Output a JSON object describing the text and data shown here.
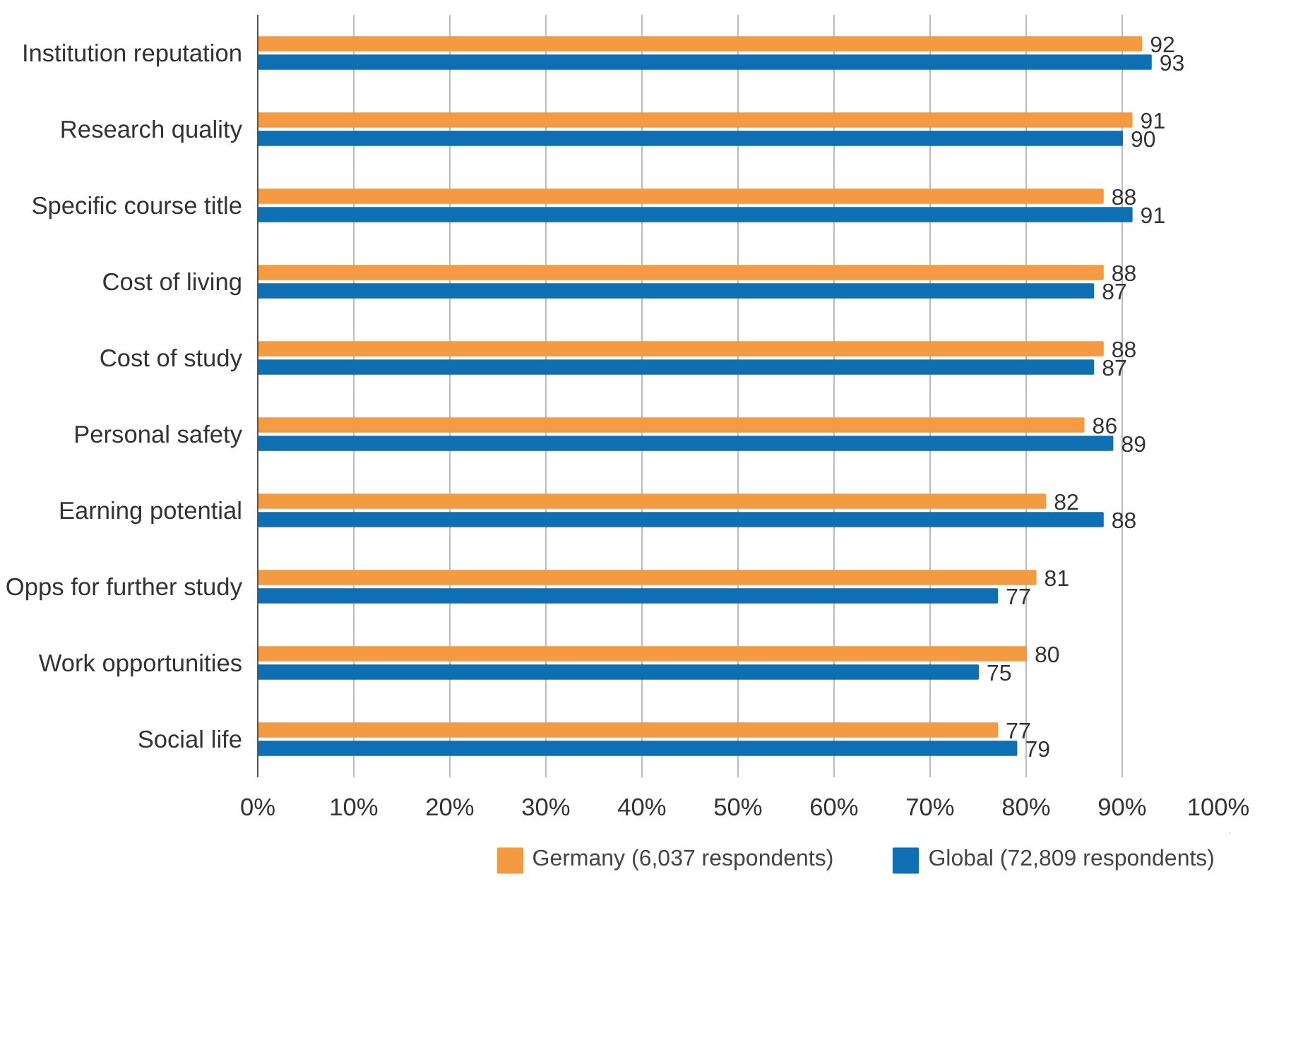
{
  "chart_data": {
    "type": "bar",
    "orientation": "horizontal",
    "categories": [
      "Institution reputation",
      "Research quality",
      "Specific course title",
      "Cost of living",
      "Cost of study",
      "Personal safety",
      "Earning potential",
      "Opps for further study",
      "Work opportunities",
      "Social life"
    ],
    "series": [
      {
        "name": "Germany (6,037 respondents)",
        "color": "#f39a43",
        "values": [
          92,
          91,
          88,
          88,
          88,
          86,
          82,
          81,
          80,
          77
        ]
      },
      {
        "name": "Global (72,809 respondents)",
        "color": "#0f6fb3",
        "values": [
          93,
          90,
          91,
          87,
          87,
          89,
          88,
          77,
          75,
          79
        ]
      }
    ],
    "xlim": [
      0,
      100
    ],
    "xticks": [
      {
        "value": 0,
        "label": "0%"
      },
      {
        "value": 10,
        "label": "10%"
      },
      {
        "value": 20,
        "label": "20%"
      },
      {
        "value": 30,
        "label": "30%"
      },
      {
        "value": 40,
        "label": "40%"
      },
      {
        "value": 50,
        "label": "50%"
      },
      {
        "value": 60,
        "label": "60%"
      },
      {
        "value": 70,
        "label": "70%"
      },
      {
        "value": 80,
        "label": "80%"
      },
      {
        "value": 90,
        "label": "90%"
      },
      {
        "value": 100,
        "label": "100%"
      }
    ],
    "grid": "x",
    "legend": "bottom",
    "data_labels": true
  }
}
